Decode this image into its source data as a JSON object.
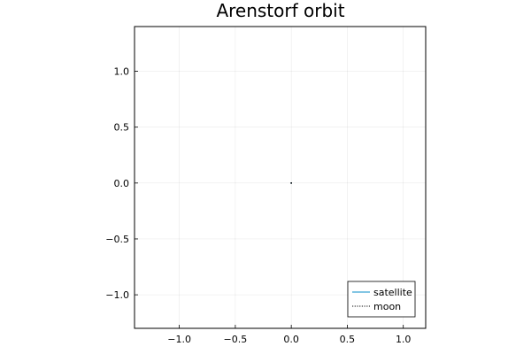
{
  "chart_data": {
    "type": "line",
    "title": "Arenstorf orbit",
    "xlabel": "",
    "ylabel": "",
    "xlim": [
      -1.4,
      1.2
    ],
    "ylim": [
      -1.3,
      1.4
    ],
    "x_ticks": [
      -1.0,
      -0.5,
      0.0,
      0.5,
      1.0
    ],
    "y_ticks": [
      -1.0,
      -0.5,
      0.0,
      0.5,
      1.0
    ],
    "x_tick_labels": [
      "−1.0",
      "−0.5",
      "0.0",
      "0.5",
      "1.0"
    ],
    "y_tick_labels": [
      "−1.0",
      "−0.5",
      "0.0",
      "0.5",
      "1.0"
    ],
    "grid": true,
    "legend_position": "bottom-right",
    "series": [
      {
        "name": "satellite",
        "color": "#5ab4db",
        "style": "solid",
        "x": [
          0.0
        ],
        "y": [
          0.0
        ]
      },
      {
        "name": "moon",
        "color": "#000000",
        "style": "dotted",
        "x": [
          0.0
        ],
        "y": [
          0.0
        ]
      }
    ]
  }
}
